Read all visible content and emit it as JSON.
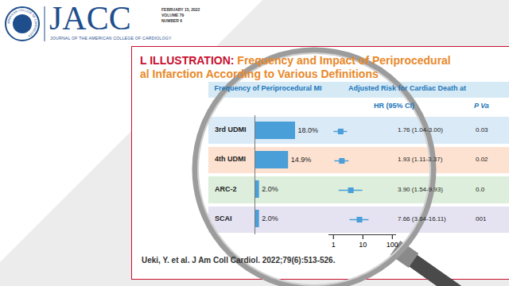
{
  "header": {
    "journal": "JACC",
    "journal_full": "JOURNAL OF THE AMERICAN COLLEGE OF CARDIOLOGY",
    "issue": [
      "FEBRUARY 15, 2022",
      "VOLUME 79",
      "NUMBER 6"
    ],
    "seal": "AMERICAN COLLEGE OF CARDIOLOGY"
  },
  "figure": {
    "label": "L ILLUSTRATION:",
    "title": "Frequency and Impact of Periprocedural",
    "title_line2": "al Infarction According to Various Definitions",
    "citation": "Ueki, Y. et al. J Am Coll Cardiol. 2022;79(6):513-526."
  },
  "chart_data": [
    {
      "type": "bar",
      "orientation": "horizontal",
      "title": "Frequency of Periprocedural MI",
      "categories": [
        "3rd UDMI",
        "4th UDMI",
        "ARC-2",
        "SCAI"
      ],
      "values": [
        18.0,
        14.9,
        2.0,
        2.0
      ],
      "value_labels": [
        "18.0%",
        "14.9%",
        "2.0%",
        "2.0%"
      ],
      "data_labels": true,
      "color": "#4a9fd8",
      "xlim": [
        0,
        30
      ],
      "tick_labels": false
    },
    {
      "type": "forest",
      "title": "Adjusted Risk for Cardiac Death at",
      "categories": [
        "3rd UDMI",
        "4th UDMI",
        "ARC-2",
        "SCAI"
      ],
      "values": [
        1.76,
        1.93,
        3.9,
        7.66
      ],
      "ci_low": [
        1.04,
        1.11,
        1.54,
        3.64
      ],
      "ci_high": [
        3.0,
        3.37,
        9.93,
        16.11
      ],
      "value_header": "HR (95% CI)",
      "value_labels": [
        "1.76 (1.04-3.00)",
        "1.93 (1.11-3.37)",
        "3.90 (1.54-9.93)",
        "7.66 (3.64-16.11)"
      ],
      "p_header": "P Va",
      "p_values": [
        "0.03",
        "0.02",
        "0.0",
        "001"
      ],
      "log": "x",
      "xlim": [
        0.7,
        130
      ],
      "xticks": [
        1,
        10,
        100
      ],
      "color": "#4a9fd8",
      "marker": "square"
    }
  ]
}
